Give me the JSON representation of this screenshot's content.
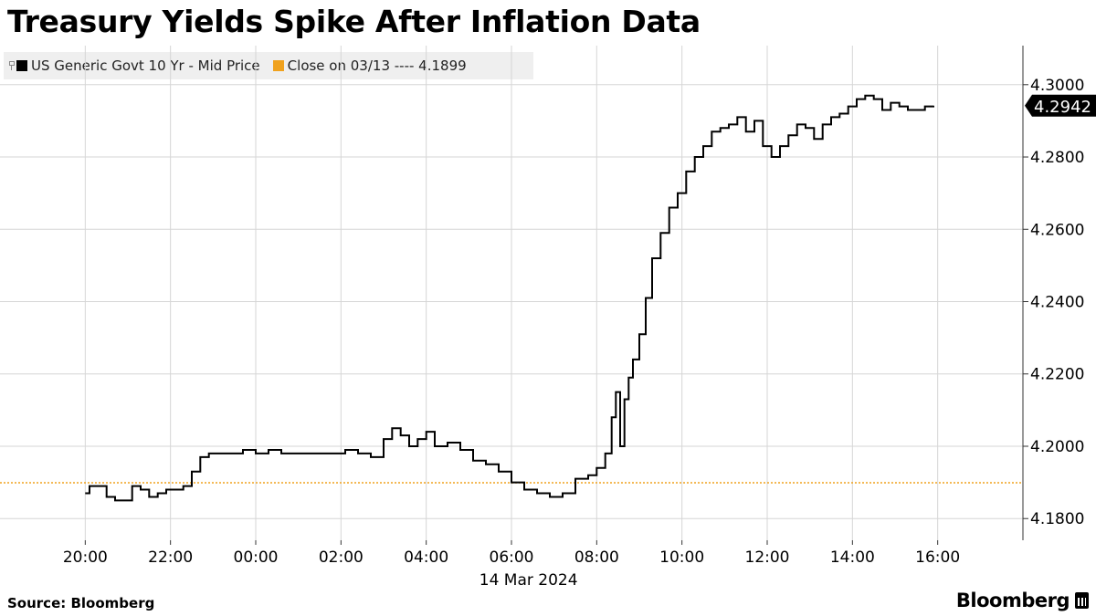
{
  "brand": "Bloomberg",
  "source": "Source: Bloomberg",
  "legend": {
    "series_label": "US Generic Govt 10 Yr - Mid Price",
    "close_label": "Close on 03/13 ---- 4.1899"
  },
  "colors": {
    "series": "#000000",
    "close_line": "#f0a21e",
    "grid": "#d6d6d6",
    "badge_bg": "#000000",
    "badge_fg": "#ffffff"
  },
  "chart_data": {
    "type": "line",
    "title": "Treasury Yields Spike After Inflation Data",
    "xlabel": "14 Mar 2024",
    "ylabel": "",
    "x_ticks": [
      "20:00",
      "22:00",
      "00:00",
      "02:00",
      "04:00",
      "06:00",
      "08:00",
      "10:00",
      "12:00",
      "14:00",
      "16:00"
    ],
    "x_tick_hours": [
      -4,
      -2,
      0,
      2,
      4,
      6,
      8,
      10,
      12,
      14,
      16
    ],
    "xlim_hours": [
      -6,
      18
    ],
    "ylim": [
      4.174,
      4.3108
    ],
    "y_ticks": [
      4.18,
      4.2,
      4.22,
      4.24,
      4.26,
      4.28,
      4.3
    ],
    "y_tick_labels": [
      "4.1800",
      "4.2000",
      "4.2200",
      "4.2400",
      "4.2600",
      "4.2800",
      "4.3000"
    ],
    "grid": true,
    "legend_position": "top-left",
    "reference_line": {
      "name": "Close on 03/13",
      "value": 4.1899
    },
    "last_value": 4.2942,
    "last_value_label": "4.2942",
    "series": [
      {
        "name": "US Generic Govt 10 Yr - Mid Price",
        "x": [
          -4.0,
          -3.9,
          -3.7,
          -3.5,
          -3.3,
          -3.1,
          -2.9,
          -2.7,
          -2.5,
          -2.3,
          -2.1,
          -1.9,
          -1.7,
          -1.5,
          -1.3,
          -1.1,
          -0.9,
          -0.7,
          -0.5,
          -0.3,
          0.0,
          0.3,
          0.6,
          0.9,
          1.2,
          1.5,
          1.8,
          2.1,
          2.4,
          2.7,
          3.0,
          3.2,
          3.4,
          3.6,
          3.8,
          4.0,
          4.2,
          4.5,
          4.8,
          5.1,
          5.4,
          5.7,
          6.0,
          6.3,
          6.6,
          6.9,
          7.2,
          7.5,
          7.8,
          8.0,
          8.2,
          8.35,
          8.45,
          8.55,
          8.65,
          8.75,
          8.85,
          9.0,
          9.15,
          9.3,
          9.5,
          9.7,
          9.9,
          10.1,
          10.3,
          10.5,
          10.7,
          10.9,
          11.1,
          11.3,
          11.5,
          11.7,
          11.9,
          12.1,
          12.3,
          12.5,
          12.7,
          12.9,
          13.1,
          13.3,
          13.5,
          13.7,
          13.9,
          14.1,
          14.3,
          14.5,
          14.7,
          14.9,
          15.1,
          15.3,
          15.5,
          15.7,
          15.9
        ],
        "values": [
          4.187,
          4.189,
          4.189,
          4.186,
          4.185,
          4.185,
          4.189,
          4.188,
          4.186,
          4.187,
          4.188,
          4.188,
          4.189,
          4.193,
          4.197,
          4.198,
          4.198,
          4.198,
          4.198,
          4.199,
          4.198,
          4.199,
          4.198,
          4.198,
          4.198,
          4.198,
          4.198,
          4.199,
          4.198,
          4.197,
          4.202,
          4.205,
          4.203,
          4.2,
          4.202,
          4.204,
          4.2,
          4.201,
          4.199,
          4.196,
          4.195,
          4.193,
          4.19,
          4.188,
          4.187,
          4.186,
          4.187,
          4.191,
          4.192,
          4.194,
          4.198,
          4.208,
          4.215,
          4.2,
          4.213,
          4.219,
          4.224,
          4.231,
          4.241,
          4.252,
          4.259,
          4.266,
          4.27,
          4.276,
          4.28,
          4.283,
          4.287,
          4.288,
          4.289,
          4.291,
          4.287,
          4.29,
          4.283,
          4.28,
          4.283,
          4.286,
          4.289,
          4.288,
          4.285,
          4.289,
          4.291,
          4.292,
          4.294,
          4.296,
          4.297,
          4.296,
          4.293,
          4.295,
          4.294,
          4.293,
          4.293,
          4.294,
          4.2942
        ]
      }
    ]
  }
}
